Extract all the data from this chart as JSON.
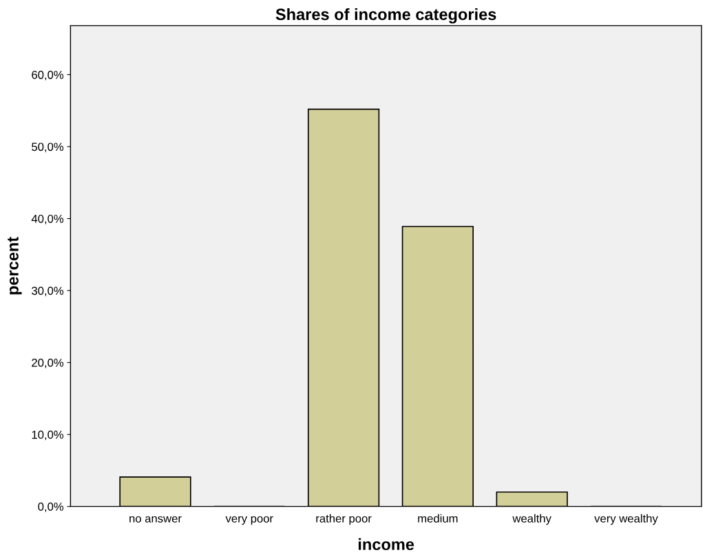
{
  "chart_data": {
    "type": "bar",
    "title": "Shares of income categories",
    "xlabel": "income",
    "ylabel": "percent",
    "categories": [
      "no answer",
      "very poor",
      "rather poor",
      "medium",
      "wealthy",
      "very wealthy"
    ],
    "values": [
      4.1,
      0,
      55.2,
      38.9,
      2.0,
      0
    ],
    "color": "#d3cf98",
    "ylim": [
      0,
      66.8
    ],
    "yticks": [
      {
        "value": 0,
        "label": "0,0%"
      },
      {
        "value": 10,
        "label": "10,0%"
      },
      {
        "value": 20,
        "label": "20,0%"
      },
      {
        "value": 30,
        "label": "30,0%"
      },
      {
        "value": 40,
        "label": "40,0%"
      },
      {
        "value": 50,
        "label": "50,0%"
      },
      {
        "value": 60,
        "label": "60,0%"
      }
    ],
    "grid": false
  }
}
